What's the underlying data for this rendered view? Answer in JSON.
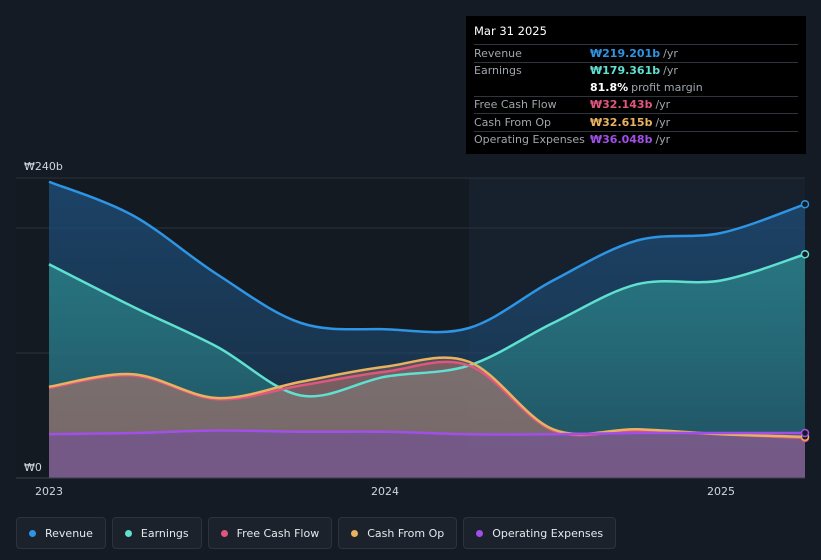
{
  "tooltip": {
    "date": "Mar 31 2025",
    "rows": [
      {
        "label": "Revenue",
        "value": "₩219.201b",
        "unit": "/yr",
        "color": "#2d95e3"
      },
      {
        "label": "Earnings",
        "value": "₩179.361b",
        "unit": "/yr",
        "color": "#5fe0d0"
      },
      {
        "margin_value": "81.8%",
        "margin_text": "profit margin"
      },
      {
        "label": "Free Cash Flow",
        "value": "₩32.143b",
        "unit": "/yr",
        "color": "#e0567f"
      },
      {
        "label": "Cash From Op",
        "value": "₩32.615b",
        "unit": "/yr",
        "color": "#e9b260"
      },
      {
        "label": "Operating Expenses",
        "value": "₩36.048b",
        "unit": "/yr",
        "color": "#a24ee8"
      }
    ]
  },
  "legend": [
    {
      "label": "Revenue",
      "color": "#2d95e3"
    },
    {
      "label": "Earnings",
      "color": "#5fe0d0"
    },
    {
      "label": "Free Cash Flow",
      "color": "#e0567f"
    },
    {
      "label": "Cash From Op",
      "color": "#e9b260"
    },
    {
      "label": "Operating Expenses",
      "color": "#a24ee8"
    }
  ],
  "chart_data": {
    "type": "area",
    "ylim": [
      0,
      240
    ],
    "y_tick_labels": [
      {
        "value": 240,
        "label": "₩240b"
      },
      {
        "value": 0,
        "label": "₩0"
      }
    ],
    "x_ticks": [
      {
        "value": 2023.0,
        "label": "2023"
      },
      {
        "value": 2024.0,
        "label": "2024"
      },
      {
        "value": 2025.0,
        "label": "2025"
      }
    ],
    "xlim": [
      2022.9,
      2025.25
    ],
    "highlight_from": 2024.25,
    "series": [
      {
        "name": "Revenue",
        "color": "#2d95e3",
        "x": [
          2023.0,
          2023.25,
          2023.5,
          2023.75,
          2024.0,
          2024.25,
          2024.5,
          2024.75,
          2025.0,
          2025.25
        ],
        "y": [
          237,
          210,
          163,
          124,
          119,
          120,
          158,
          190,
          196,
          219
        ]
      },
      {
        "name": "Earnings",
        "color": "#5fe0d0",
        "x": [
          2023.0,
          2023.25,
          2023.5,
          2023.75,
          2024.0,
          2024.25,
          2024.5,
          2024.75,
          2025.0,
          2025.25
        ],
        "y": [
          171,
          137,
          105,
          66,
          81,
          90,
          124,
          155,
          158,
          179
        ]
      },
      {
        "name": "Free Cash Flow",
        "color": "#e0567f",
        "x": [
          2023.0,
          2023.25,
          2023.5,
          2023.75,
          2024.0,
          2024.25,
          2024.5,
          2024.75,
          2025.0,
          2025.25
        ],
        "y": [
          72,
          82,
          63,
          74,
          85,
          90,
          38,
          38,
          35,
          32
        ]
      },
      {
        "name": "Cash From Op",
        "color": "#e9b260",
        "x": [
          2023.0,
          2023.25,
          2023.5,
          2023.75,
          2024.0,
          2024.25,
          2024.5,
          2024.75,
          2025.0,
          2025.25
        ],
        "y": [
          73,
          83,
          64,
          77,
          89,
          93,
          39,
          39,
          35,
          33
        ]
      },
      {
        "name": "Operating Expenses",
        "color": "#a24ee8",
        "x": [
          2023.0,
          2023.25,
          2023.5,
          2023.75,
          2024.0,
          2024.25,
          2024.5,
          2024.75,
          2025.0,
          2025.25
        ],
        "y": [
          35,
          36,
          38,
          37,
          37,
          35,
          35,
          36,
          36,
          36
        ]
      }
    ]
  }
}
